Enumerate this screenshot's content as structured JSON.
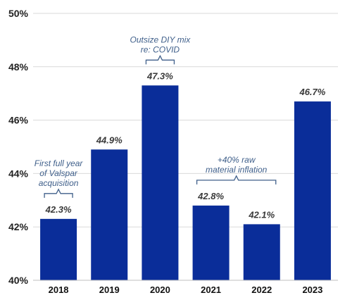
{
  "chart_data": {
    "type": "bar",
    "categories": [
      "2018",
      "2019",
      "2020",
      "2021",
      "2022",
      "2023"
    ],
    "values": [
      42.3,
      44.9,
      47.3,
      42.8,
      42.1,
      46.7
    ],
    "value_labels": [
      "42.3%",
      "44.9%",
      "47.3%",
      "42.8%",
      "42.1%",
      "46.7%"
    ],
    "title": "",
    "xlabel": "",
    "ylabel": "",
    "ylim": [
      40,
      50
    ],
    "yticks": [
      40,
      42,
      44,
      46,
      48,
      50
    ],
    "ytick_labels": [
      "40%",
      "42%",
      "44%",
      "46%",
      "48%",
      "50%"
    ],
    "grid": true,
    "bar_color": "#0a2d99",
    "annotations": [
      {
        "lines": [
          "First full year",
          "of Valspar",
          "acquisition"
        ],
        "category": "2018",
        "span_categories": [
          "2018"
        ]
      },
      {
        "lines": [
          "Outsize DIY mix",
          "re: COVID"
        ],
        "category": "2020",
        "span_categories": [
          "2020"
        ]
      },
      {
        "lines": [
          "+40% raw",
          "material inflation"
        ],
        "category": "2021",
        "span_categories": [
          "2021",
          "2022"
        ]
      }
    ]
  }
}
